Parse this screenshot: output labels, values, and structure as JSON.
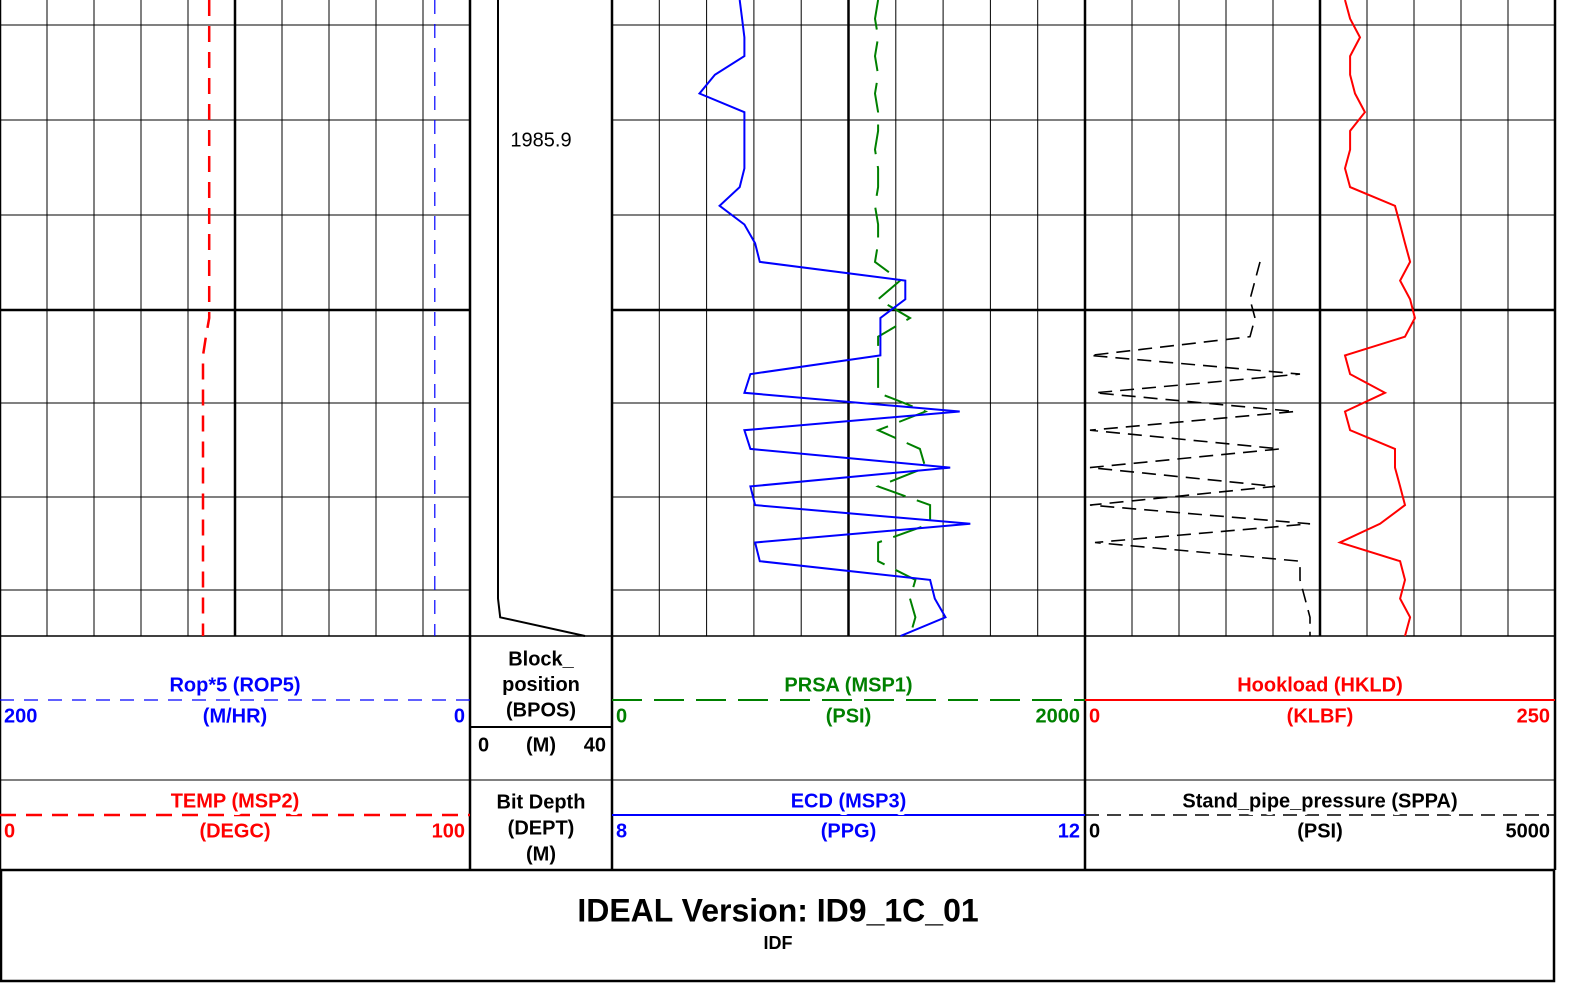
{
  "tracks": [
    {
      "curves": [
        {
          "name": "Rop*5 (ROP5)",
          "unit": "(M/HR)",
          "xlim": [
            200,
            0
          ],
          "color": "#0000ff",
          "style": "thin-dashed",
          "values": [
            15,
            15,
            15,
            15,
            15,
            15,
            15,
            15,
            15,
            15,
            15,
            15,
            15,
            15,
            15,
            15,
            15,
            15,
            15,
            15,
            15,
            15,
            15,
            15,
            15,
            15,
            15,
            15,
            15,
            15,
            15,
            15,
            15,
            15,
            15
          ]
        },
        {
          "name": "TEMP (MSP2)",
          "unit": "(DEGC)",
          "xlim": [
            0,
            100
          ],
          "color": "#ff0000",
          "style": "dashed",
          "values": [
            44.5,
            44.5,
            44.5,
            44.5,
            44.5,
            44.5,
            44.5,
            44.5,
            44.5,
            44.5,
            44.5,
            44.5,
            44.5,
            44.5,
            44.5,
            44.5,
            44.5,
            44.5,
            43.8,
            43.2,
            43.2,
            43.2,
            43.2,
            43.2,
            43.2,
            43.2,
            43.2,
            43.2,
            43.2,
            43.2,
            43.2,
            43.2,
            43.2,
            43.2,
            43.2
          ]
        }
      ]
    },
    {
      "depth_labels": [
        "1985.9"
      ],
      "index": {
        "name_lines": [
          "Bit Depth",
          "(DEPT)",
          "(M)"
        ]
      },
      "curves": [
        {
          "name_lines": [
            "Block_",
            "position",
            "(BPOS)"
          ],
          "unit": "(M)",
          "xlim": [
            0,
            40
          ],
          "color": "#000000",
          "style": "solid",
          "values": [
            7.9,
            7.9,
            7.9,
            7.9,
            7.9,
            7.9,
            7.9,
            7.9,
            7.9,
            7.9,
            7.9,
            7.9,
            7.9,
            7.9,
            7.9,
            7.9,
            7.9,
            7.9,
            7.9,
            7.9,
            7.9,
            7.9,
            7.9,
            7.9,
            7.9,
            7.9,
            7.9,
            7.9,
            7.9,
            7.9,
            7.9,
            7.9,
            7.9,
            8.5,
            32.4
          ]
        }
      ]
    },
    {
      "curves": [
        {
          "name": "PRSA (MSP1)",
          "unit": "(PSI)",
          "xlim": [
            0,
            2000
          ],
          "color": "#008000",
          "style": "long-dashed",
          "values": [
            1125,
            1112,
            1125,
            1112,
            1125,
            1112,
            1125,
            1125,
            1112,
            1125,
            1125,
            1112,
            1125,
            1125,
            1112,
            1218,
            1125,
            1260,
            1125,
            1125,
            1125,
            1125,
            1325,
            1125,
            1302,
            1325,
            1125,
            1345,
            1345,
            1125,
            1125,
            1283,
            1260,
            1283,
            1260
          ]
        },
        {
          "name": "ECD (MSP3)",
          "unit": "(PPG)",
          "xlim": [
            8,
            12
          ],
          "color": "#0000ff",
          "style": "solid",
          "values": [
            9.08,
            9.1,
            9.12,
            9.12,
            8.87,
            8.74,
            9.12,
            9.12,
            9.12,
            9.12,
            9.08,
            8.91,
            9.12,
            9.21,
            9.25,
            10.48,
            10.48,
            10.27,
            10.27,
            10.27,
            9.17,
            9.12,
            10.94,
            9.12,
            9.17,
            10.86,
            9.17,
            9.21,
            11.03,
            9.21,
            9.25,
            10.69,
            10.73,
            10.82,
            10.44
          ]
        }
      ]
    },
    {
      "curves": [
        {
          "name": "Hookload (HKLD)",
          "unit": "(KLBF)",
          "xlim": [
            0,
            250
          ],
          "color": "#ff0000",
          "style": "solid",
          "values": [
            138.3,
            141.0,
            146.3,
            141.0,
            141.0,
            143.6,
            148.9,
            141.0,
            141.0,
            138.3,
            141.0,
            164.9,
            167.6,
            170.2,
            172.9,
            167.6,
            172.9,
            175.5,
            170.2,
            138.3,
            141.0,
            159.6,
            138.3,
            141.0,
            164.9,
            164.9,
            167.6,
            170.2,
            156.9,
            135.6,
            167.6,
            170.2,
            167.6,
            172.9,
            170.2
          ]
        },
        {
          "name": "Stand_pipe_pressure (SPPA)",
          "unit": "(PSI)",
          "xlim": [
            0,
            5000
          ],
          "color": "#000000",
          "style": "dashed-black",
          "values": [
            null,
            null,
            null,
            null,
            null,
            null,
            null,
            null,
            null,
            null,
            null,
            null,
            null,
            null,
            1862,
            1809,
            1755,
            1809,
            1755,
            53,
            2287,
            106,
            2234,
            53,
            2074,
            53,
            2021,
            53,
            2394,
            106,
            2287,
            2287,
            2340,
            2394,
            2394
          ]
        }
      ]
    }
  ],
  "footer": {
    "title": "IDEAL Version: ID9_1C_01",
    "subtitle": "IDF"
  }
}
